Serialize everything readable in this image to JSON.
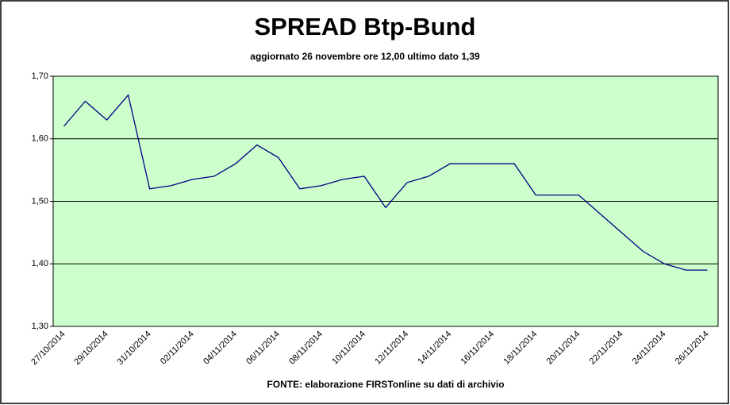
{
  "chart_data": {
    "type": "line",
    "title": "SPREAD Btp-Bund",
    "subtitle": "aggiornato 26 novembre ore 12,00  ultimo dato  1,39",
    "source": "FONTE: elaborazione FIRSTonline su dati di archivio",
    "categories": [
      "27/10/2014",
      null,
      "29/10/2014",
      null,
      "31/10/2014",
      null,
      "02/11/2014",
      null,
      "04/11/2014",
      null,
      "06/11/2014",
      null,
      "08/11/2014",
      null,
      "10/11/2014",
      null,
      "12/11/2014",
      null,
      "14/11/2014",
      null,
      "16/11/2014",
      null,
      "18/11/2014",
      null,
      "20/11/2014",
      null,
      "22/11/2014",
      null,
      "24/11/2014",
      null,
      "26/11/2014"
    ],
    "values": [
      1.62,
      1.66,
      1.63,
      1.67,
      1.52,
      1.525,
      1.535,
      1.54,
      1.56,
      1.59,
      1.57,
      1.52,
      1.525,
      1.535,
      1.54,
      1.49,
      1.53,
      1.54,
      1.56,
      1.56,
      1.56,
      1.56,
      1.51,
      1.51,
      1.51,
      1.48,
      1.45,
      1.42,
      1.4,
      1.39,
      1.39
    ],
    "color": "#000080",
    "ylim": [
      1.3,
      1.7
    ],
    "yticks": [
      {
        "value": 1.3,
        "label": "1,30"
      },
      {
        "value": 1.4,
        "label": "1,40"
      },
      {
        "value": 1.5,
        "label": "1,50"
      },
      {
        "value": 1.6,
        "label": "1,60"
      },
      {
        "value": 1.7,
        "label": "1,70"
      }
    ],
    "grid": true
  }
}
